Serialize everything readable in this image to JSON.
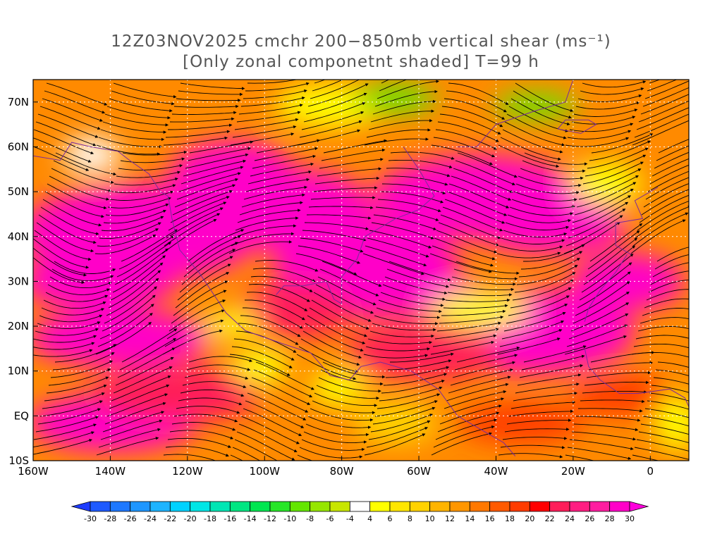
{
  "title": {
    "line1": "12Z03NOV2025 cmchr 200−850mb vertical shear (ms⁻¹)",
    "line2": "[Only zonal componetnt shaded] T=99 h"
  },
  "map": {
    "lon_range": [
      -160,
      10
    ],
    "lat_range": [
      -10,
      75
    ],
    "lon_ticks": [
      {
        "value": -160,
        "label": "160W"
      },
      {
        "value": -140,
        "label": "140W"
      },
      {
        "value": -120,
        "label": "120W"
      },
      {
        "value": -100,
        "label": "100W"
      },
      {
        "value": -80,
        "label": "80W"
      },
      {
        "value": -60,
        "label": "60W"
      },
      {
        "value": -40,
        "label": "40W"
      },
      {
        "value": -20,
        "label": "20W"
      },
      {
        "value": 0,
        "label": "0"
      }
    ],
    "lat_ticks": [
      {
        "value": 70,
        "label": "70N"
      },
      {
        "value": 60,
        "label": "60N"
      },
      {
        "value": 50,
        "label": "50N"
      },
      {
        "value": 40,
        "label": "40N"
      },
      {
        "value": 30,
        "label": "30N"
      },
      {
        "value": 20,
        "label": "20N"
      },
      {
        "value": 10,
        "label": "10N"
      },
      {
        "value": 0,
        "label": "EQ"
      },
      {
        "value": -10,
        "label": "10S"
      }
    ],
    "shading": "zonal shear component",
    "overlay": "streamlines of shear vector"
  },
  "colorbar": {
    "labels": [
      "-30",
      "-28",
      "-26",
      "-24",
      "-22",
      "-20",
      "-18",
      "-16",
      "-14",
      "-12",
      "-10",
      "-8",
      "-6",
      "-4",
      "4",
      "6",
      "8",
      "10",
      "12",
      "14",
      "16",
      "18",
      "20",
      "22",
      "24",
      "26",
      "28",
      "30"
    ],
    "colors": [
      "#1e3cff",
      "#1e5aff",
      "#1e78ff",
      "#1e96ff",
      "#1eb4ff",
      "#00d2ff",
      "#00e6e6",
      "#00e6b4",
      "#00e682",
      "#00e650",
      "#28e628",
      "#64e600",
      "#96e600",
      "#c8e600",
      "#ffffff",
      "#ffff00",
      "#ffe600",
      "#ffd200",
      "#ffb400",
      "#ff9600",
      "#ff7800",
      "#ff5a00",
      "#ff3c00",
      "#ff0000",
      "#ff1e5a",
      "#ff1e82",
      "#ff1ea0",
      "#ff00c8",
      "#ff00dc"
    ]
  }
}
